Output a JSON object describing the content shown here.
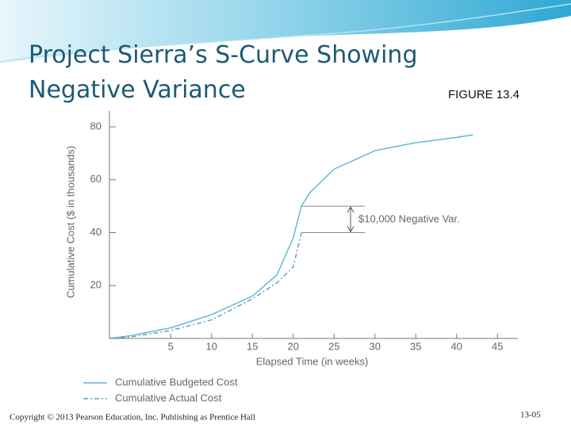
{
  "title": "Project Sierra’s S-Curve Showing Negative Variance",
  "figure_label": "FIGURE 13.4",
  "footer": {
    "copyright": "Copyright © 2013 Pearson Education, Inc. Publishing as Prentice Hall",
    "page": "13-05"
  },
  "chart_data": {
    "type": "line",
    "x_label": "Elapsed Time (in weeks)",
    "y_label": "Cumulative Cost ($ in thousands)",
    "annotation": "$10,000 Negative Var.",
    "x": [
      -2.5,
      0,
      5,
      10,
      15,
      18,
      20,
      21,
      22,
      25,
      30,
      35,
      40,
      42
    ],
    "series": [
      {
        "name": "Cumulative Budgeted Cost",
        "color": "#5ab4d6",
        "dash": "solid",
        "values": [
          0,
          1,
          4,
          9,
          16,
          24,
          38,
          50,
          55,
          64,
          71,
          74,
          76,
          77
        ]
      },
      {
        "name": "Cumulative Actual Cost",
        "color": "#5a9fc8",
        "dash": "dashdot",
        "values": [
          0,
          0.5,
          3,
          7,
          15,
          21,
          27,
          40,
          null,
          null,
          null,
          null,
          null,
          null
        ]
      }
    ],
    "xlim": [
      -2.5,
      47.5
    ],
    "xticks": [
      5,
      10,
      15,
      20,
      25,
      30,
      35,
      40,
      45
    ],
    "ylim": [
      0,
      86
    ],
    "yticks": [
      20,
      40,
      60,
      80
    ]
  }
}
